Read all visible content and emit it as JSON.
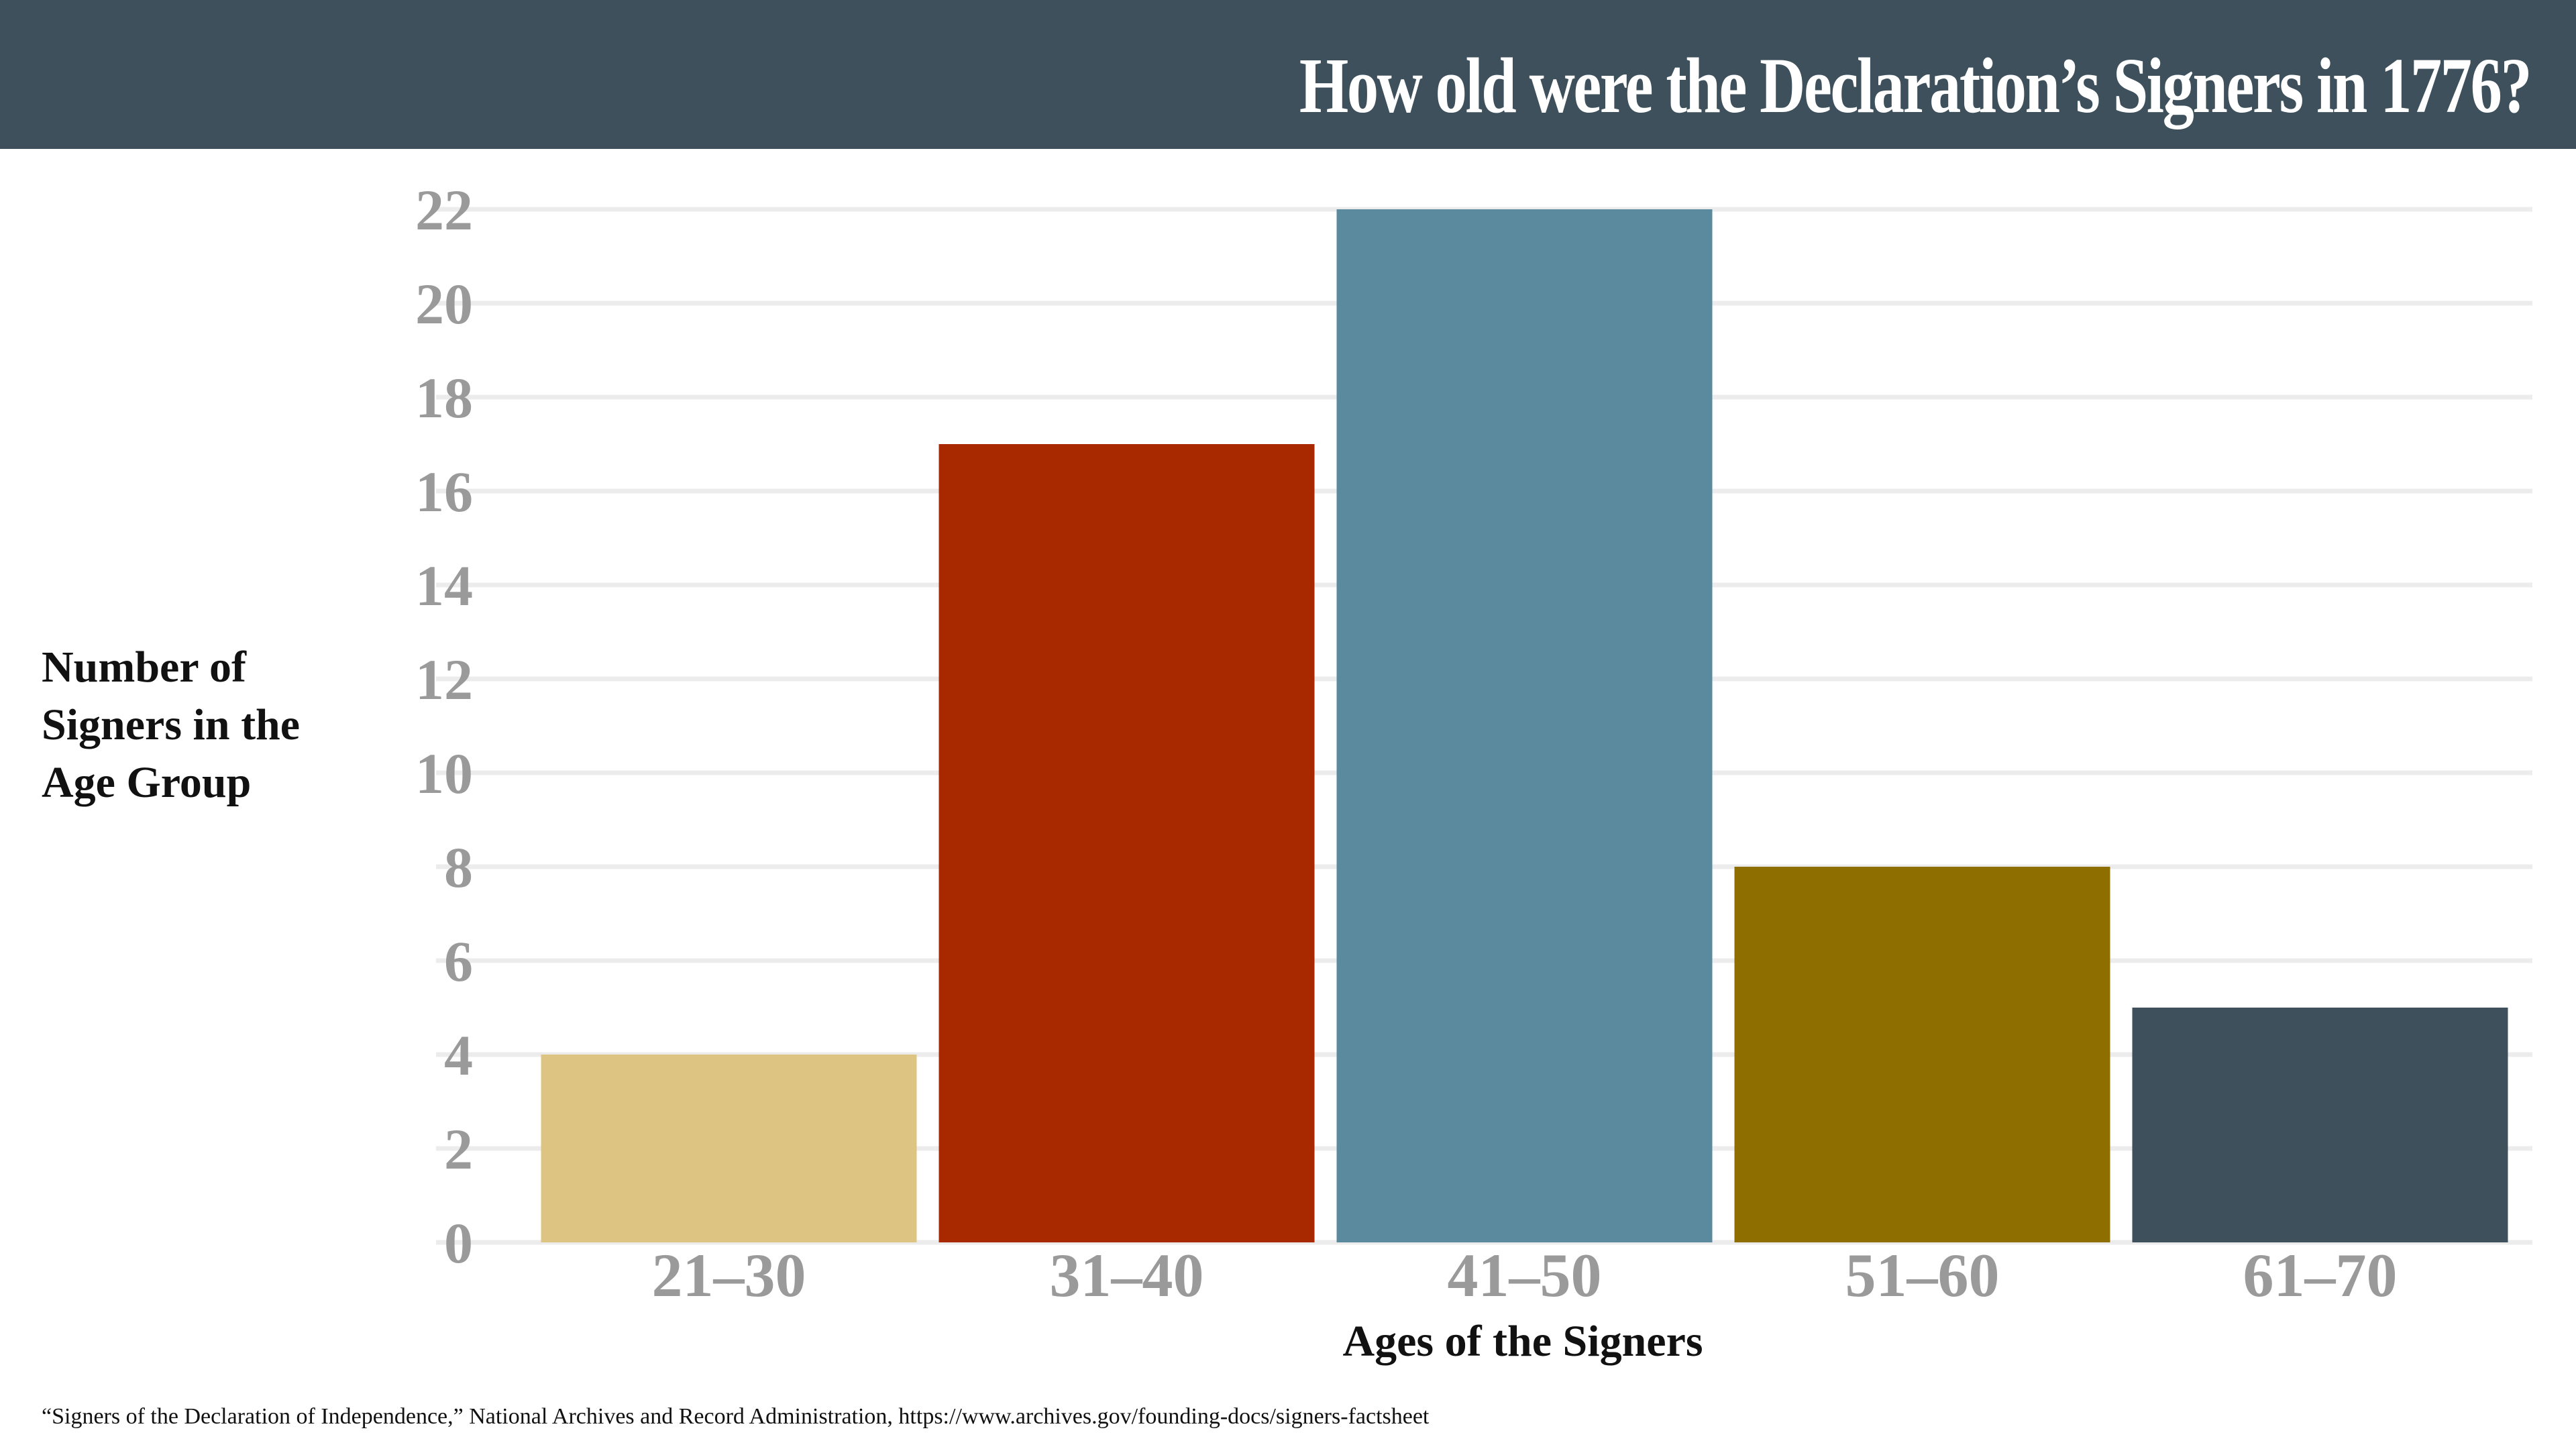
{
  "colors": {
    "header_bg": "#3e505b",
    "grid": "#ececec",
    "tick_text": "#9a9a9a"
  },
  "chart_data": {
    "type": "bar",
    "title": "How old were the Declaration’s Signers in 1776?",
    "xlabel": "Ages of the Signers",
    "ylabel": "Number of Signers in the Age Group",
    "categories": [
      "21–30",
      "31–40",
      "41–50",
      "51–60",
      "61–70"
    ],
    "values": [
      4,
      17,
      22,
      8,
      5
    ],
    "bar_colors": [
      "#ddc483",
      "#a82900",
      "#5b8a9f",
      "#8f6e00",
      "#3e505b"
    ],
    "ylim": [
      0,
      22
    ],
    "yticks": [
      0,
      2,
      4,
      6,
      8,
      10,
      12,
      14,
      16,
      18,
      20,
      22
    ],
    "grid": true,
    "legend": "none"
  },
  "source_note": "“Signers of the Declaration of Independence,” National Archives and Record Administration, https://www.archives.gov/founding-docs/signers-factsheet"
}
